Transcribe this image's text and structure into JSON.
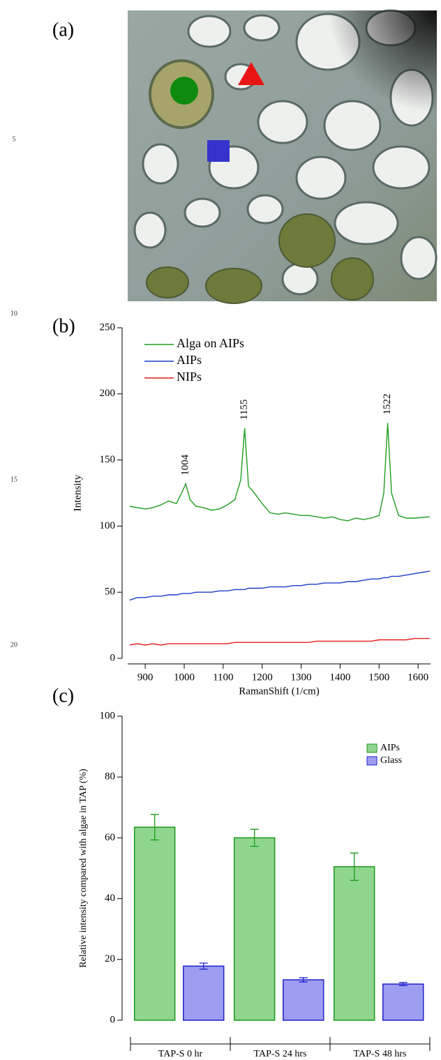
{
  "line_numbers": [
    "5",
    "10",
    "15",
    "20"
  ],
  "image_panel": {
    "label": "(a)"
  },
  "chart_data": [
    {
      "type": "line",
      "panel_label": "(b)",
      "x_label": "RamanShift (1/cm)",
      "y_label": "Intensity",
      "x": [
        860,
        880,
        900,
        920,
        940,
        960,
        980,
        995,
        1004,
        1015,
        1030,
        1050,
        1070,
        1090,
        1110,
        1130,
        1145,
        1155,
        1165,
        1180,
        1200,
        1220,
        1240,
        1260,
        1280,
        1300,
        1320,
        1340,
        1360,
        1380,
        1400,
        1420,
        1440,
        1460,
        1480,
        1500,
        1512,
        1522,
        1532,
        1550,
        1570,
        1590,
        1630
      ],
      "series": [
        {
          "name": "Alga on AIPs",
          "color": "#1f9e1f",
          "values": [
            115,
            114,
            113,
            114,
            116,
            119,
            117,
            126,
            132,
            120,
            115,
            114,
            112,
            113,
            116,
            120,
            135,
            174,
            130,
            125,
            117,
            110,
            109,
            110,
            109,
            108,
            108,
            107,
            106,
            107,
            105,
            104,
            106,
            105,
            106,
            108,
            125,
            178,
            125,
            108,
            106,
            106,
            107
          ]
        },
        {
          "name": "AIPs",
          "color": "#1a3fc4",
          "values": [
            44,
            46,
            46,
            47,
            47,
            48,
            48,
            49,
            49,
            49,
            50,
            50,
            50,
            51,
            51,
            52,
            52,
            52,
            53,
            53,
            53,
            54,
            54,
            54,
            55,
            55,
            56,
            56,
            57,
            57,
            57,
            58,
            58,
            59,
            60,
            60,
            61,
            61,
            62,
            62,
            63,
            64,
            66
          ]
        },
        {
          "name": "NIPs",
          "color": "#e21c1c",
          "values": [
            10,
            11,
            10,
            11,
            10,
            11,
            11,
            11,
            11,
            11,
            11,
            11,
            11,
            11,
            11,
            12,
            12,
            12,
            12,
            12,
            12,
            12,
            12,
            12,
            12,
            12,
            12,
            13,
            13,
            13,
            13,
            13,
            13,
            13,
            13,
            14,
            14,
            14,
            14,
            14,
            14,
            15,
            15
          ]
        }
      ],
      "annotations": [
        1004,
        1155,
        1522
      ],
      "xlim": [
        855,
        1632
      ],
      "xticks": [
        900,
        1000,
        1100,
        1200,
        1300,
        1400,
        1500,
        1600
      ],
      "ylim": [
        0,
        250
      ],
      "yticks": [
        0,
        50,
        100,
        150,
        200,
        250
      ],
      "legend": "top-left"
    },
    {
      "type": "bar",
      "panel_label": "(c)",
      "y_label": "Relative intensity compared with algae in TAP (%)",
      "categories": [
        "TAP-S 0 hr",
        "TAP-S 24 hrs",
        "TAP-S 48 hrs"
      ],
      "series": [
        {
          "name": "AIPs",
          "color": "#8fd68f",
          "edge": "#1a9a1a",
          "values": [
            63.5,
            60,
            50.5
          ],
          "errors": [
            4.2,
            2.8,
            4.5
          ]
        },
        {
          "name": "Glass",
          "color": "#9d9df2",
          "edge": "#2121cc",
          "values": [
            17.8,
            13.3,
            11.9
          ],
          "errors": [
            1,
            0.7,
            0.5
          ]
        }
      ],
      "ylim": [
        0,
        100
      ],
      "yticks": [
        0,
        20,
        40,
        60,
        80,
        100
      ],
      "legend": "top-right"
    }
  ]
}
